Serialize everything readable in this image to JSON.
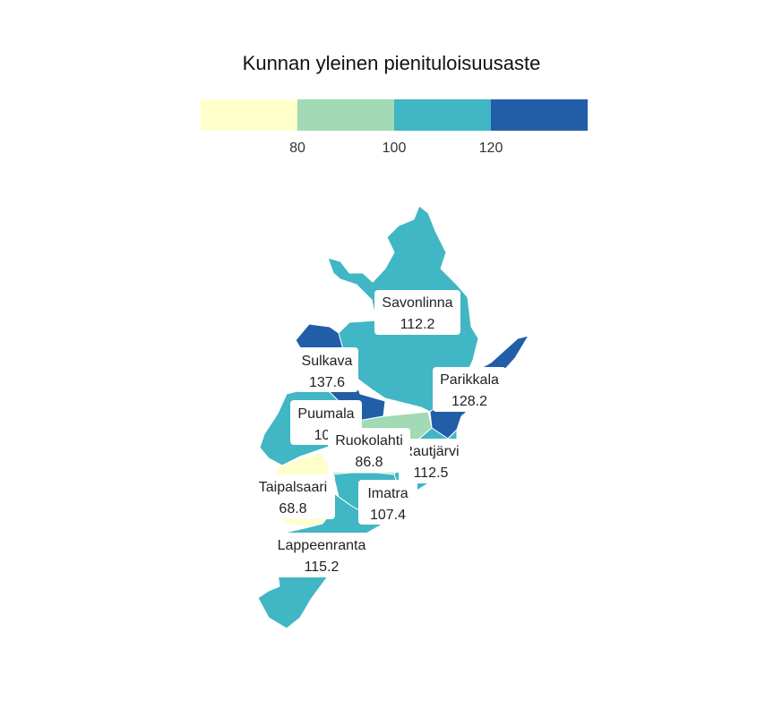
{
  "chart_data": {
    "type": "choropleth",
    "title": "Kunnan yleinen pienituloisuusaste",
    "legend": {
      "position": "top",
      "breaks": [
        80,
        100,
        120
      ],
      "tick_labels": [
        "80",
        "100",
        "120"
      ],
      "colors": [
        "#ffffcc",
        "#a1dab4",
        "#41b6c4",
        "#225ea8"
      ]
    },
    "regions": [
      {
        "name": "Savonlinna",
        "value": "112.2",
        "color": "#41b6c4"
      },
      {
        "name": "Sulkava",
        "value": "137.6",
        "color": "#225ea8"
      },
      {
        "name": "Parikkala",
        "value": "128.2",
        "color": "#225ea8"
      },
      {
        "name": "Puumala",
        "value": "101",
        "color": "#41b6c4"
      },
      {
        "name": "Ruokolahti",
        "value": "86.8",
        "color": "#a1dab4"
      },
      {
        "name": "Rautjärvi",
        "value": "112.5",
        "color": "#41b6c4"
      },
      {
        "name": "Taipalsaari",
        "value": "68.8",
        "color": "#ffffcc"
      },
      {
        "name": "Imatra",
        "value": "107.4",
        "color": "#41b6c4"
      },
      {
        "name": "Lappeenranta",
        "value": "115.2",
        "color": "#41b6c4"
      }
    ]
  }
}
